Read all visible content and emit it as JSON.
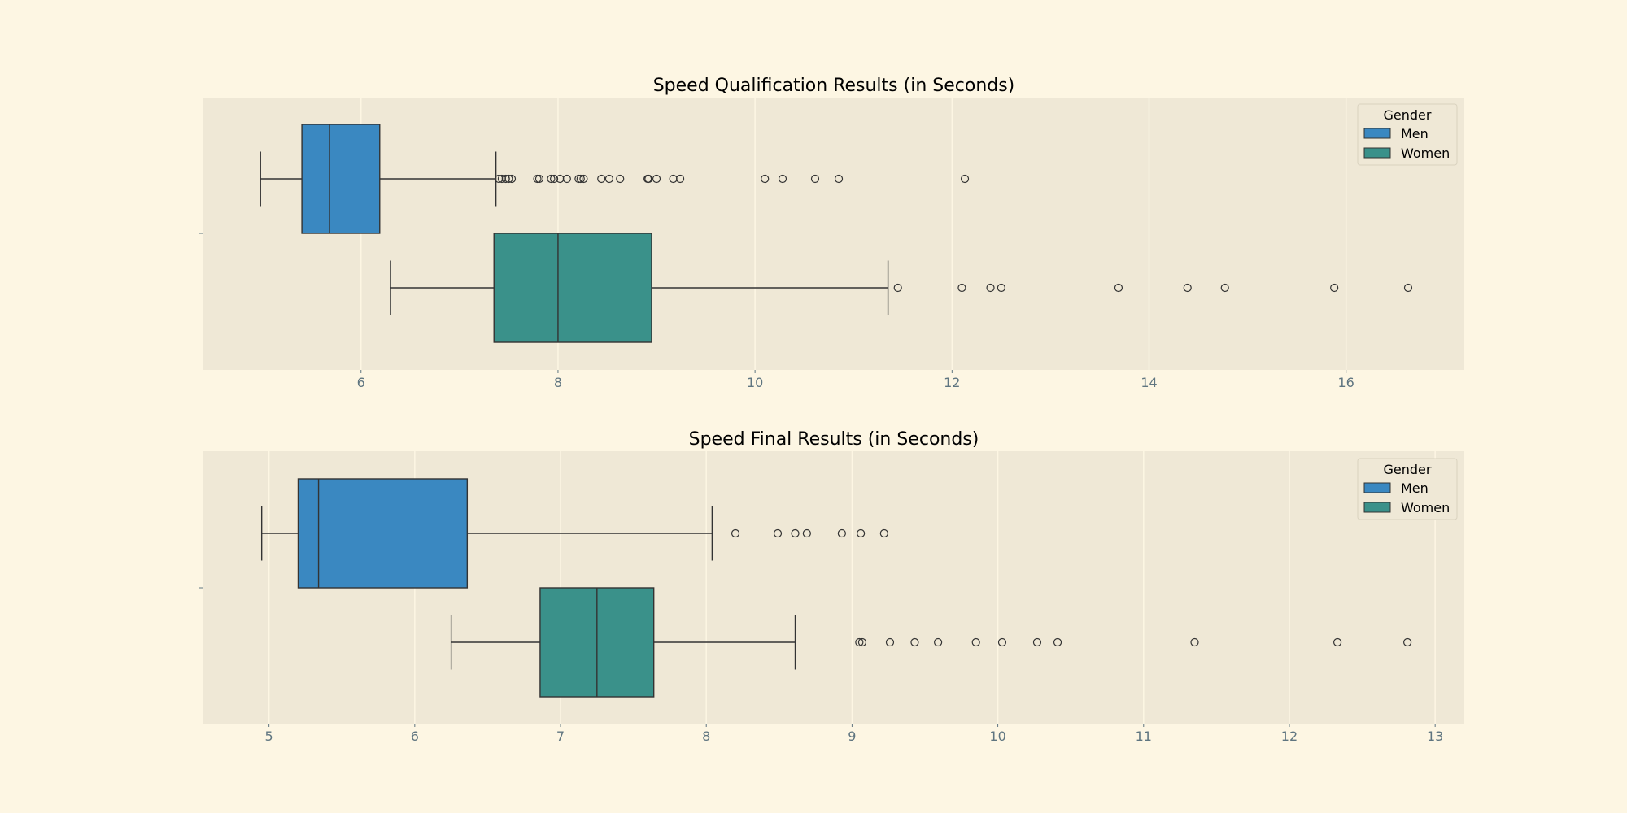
{
  "chart_data": [
    {
      "type": "box",
      "title": "Speed Qualification Results (in Seconds)",
      "xlabel": "",
      "ylabel": "",
      "xlim": [
        4.4,
        17.2
      ],
      "xticks": [
        6,
        8,
        10,
        12,
        14,
        16
      ],
      "grid": true,
      "orientation": "horizontal",
      "legend": {
        "title": "Gender",
        "position": "top-right",
        "entries": [
          "Men",
          "Women"
        ]
      },
      "series": [
        {
          "name": "Men",
          "color": "#3a88c1",
          "whisker_low": 4.98,
          "q1": 5.4,
          "median": 5.68,
          "q3": 6.19,
          "whisker_high": 7.37,
          "outliers": [
            7.4,
            7.43,
            7.47,
            7.5,
            7.53,
            7.79,
            7.81,
            7.93,
            7.96,
            8.02,
            8.09,
            8.21,
            8.23,
            8.26,
            8.44,
            8.52,
            8.63,
            8.91,
            8.92,
            9.0,
            9.17,
            9.24,
            10.1,
            10.28,
            10.61,
            10.85,
            12.13
          ]
        },
        {
          "name": "Women",
          "color": "#3a918a",
          "whisker_low": 6.3,
          "q1": 7.35,
          "median": 8.0,
          "q3": 8.95,
          "whisker_high": 11.35,
          "outliers": [
            11.45,
            12.1,
            12.39,
            12.5,
            13.69,
            14.39,
            14.77,
            15.88,
            16.63
          ]
        }
      ]
    },
    {
      "type": "box",
      "title": "Speed Final Results (in Seconds)",
      "xlabel": "",
      "ylabel": "",
      "xlim": [
        4.55,
        13.2
      ],
      "xticks": [
        5,
        6,
        7,
        8,
        9,
        10,
        11,
        12,
        13
      ],
      "grid": true,
      "orientation": "horizontal",
      "legend": {
        "title": "Gender",
        "position": "top-right",
        "entries": [
          "Men",
          "Women"
        ]
      },
      "series": [
        {
          "name": "Men",
          "color": "#3a88c1",
          "whisker_low": 4.95,
          "q1": 5.2,
          "median": 5.34,
          "q3": 6.36,
          "whisker_high": 8.04,
          "outliers": [
            8.2,
            8.49,
            8.61,
            8.69,
            8.93,
            9.06,
            9.22
          ]
        },
        {
          "name": "Women",
          "color": "#3a918a",
          "whisker_low": 6.25,
          "q1": 6.86,
          "median": 7.25,
          "q3": 7.64,
          "whisker_high": 8.61,
          "outliers": [
            9.05,
            9.07,
            9.26,
            9.43,
            9.59,
            9.85,
            10.03,
            10.27,
            10.41,
            11.35,
            12.33,
            12.81
          ]
        }
      ]
    }
  ]
}
